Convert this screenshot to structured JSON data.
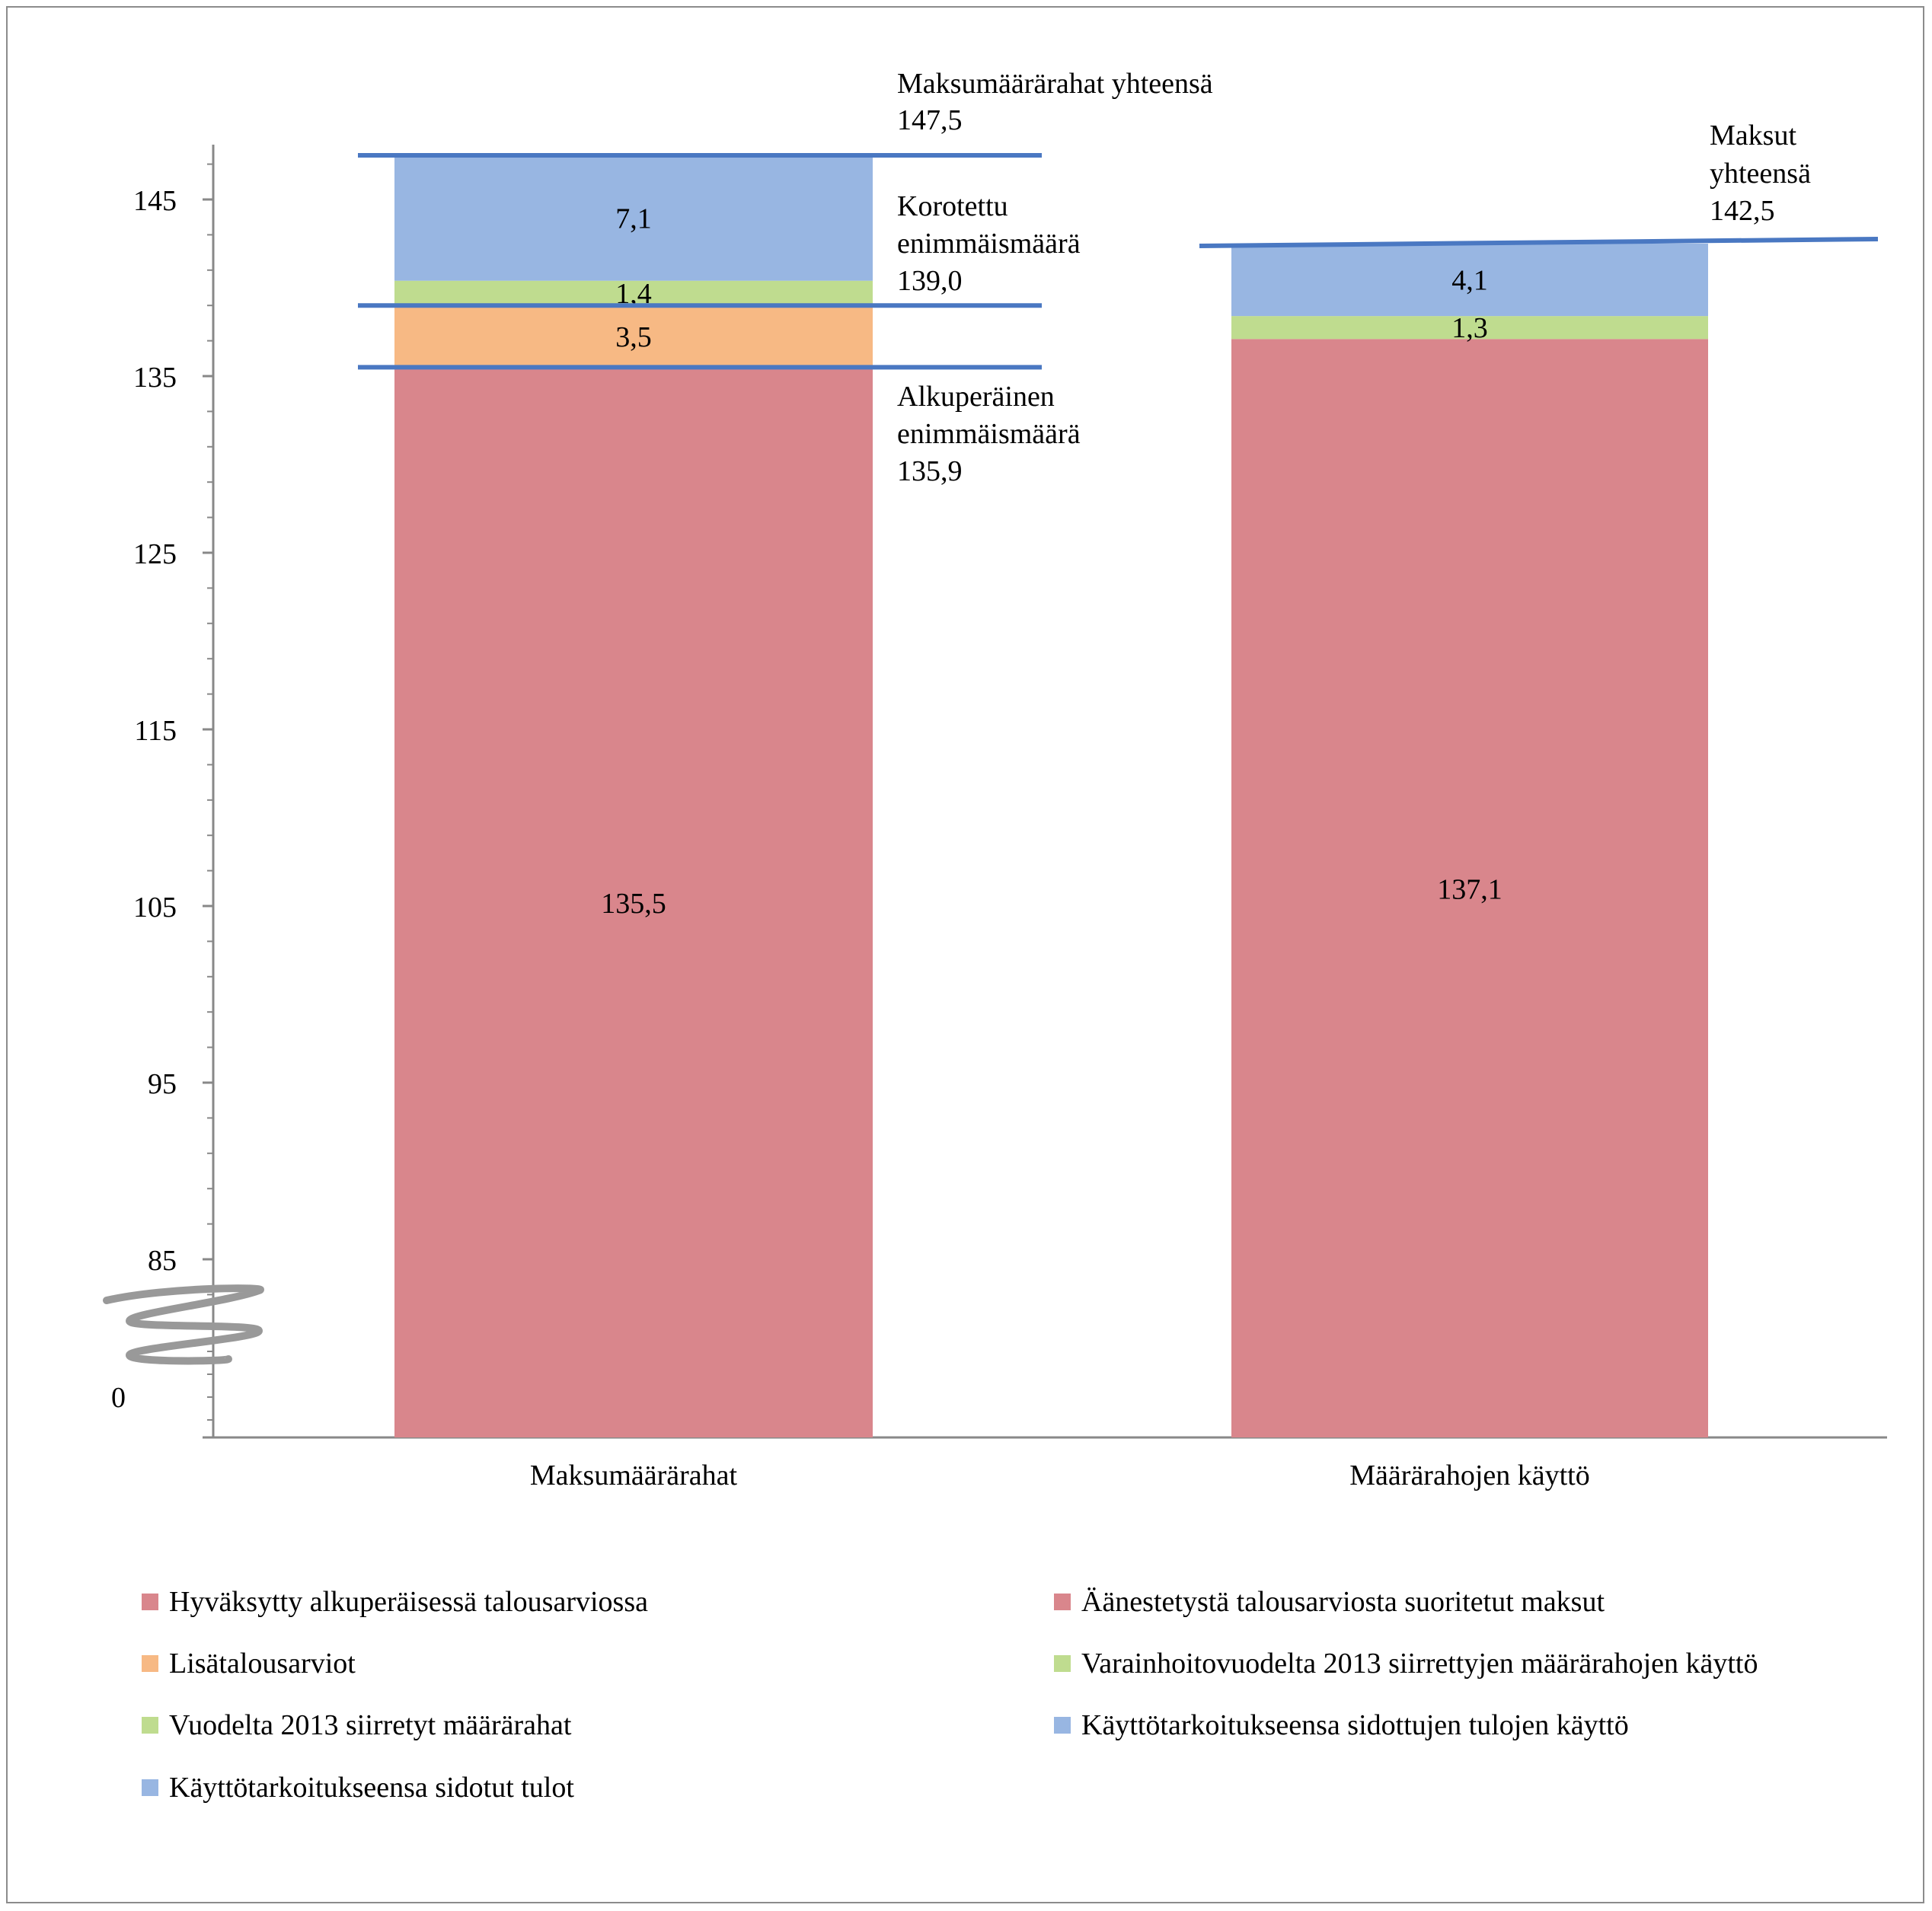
{
  "chart_data": {
    "type": "bar",
    "stacked": true,
    "categories": [
      "Maksumäärärahat",
      "Määrärahojen käyttö"
    ],
    "y_axis": {
      "ticks": [
        "145",
        "135",
        "125",
        "115",
        "105",
        "95",
        "85",
        "0"
      ],
      "tick_values": [
        145,
        135,
        125,
        115,
        105,
        95,
        85,
        0
      ],
      "broken_axis": true,
      "visible_range": [
        83,
        147.5
      ]
    },
    "bars": [
      {
        "category": "Maksumäärärahat",
        "segments": [
          {
            "name": "Hyväksytty alkuperäisessä talousarviossa",
            "value": 135.5,
            "label": "135,5",
            "color": "#d9868c"
          },
          {
            "name": "Lisätalousarviot",
            "value": 3.5,
            "label": "3,5",
            "color": "#f7b984"
          },
          {
            "name": "Vuodelta 2013 siirretyt määrärahat",
            "value": 1.4,
            "label": "1,4",
            "color": "#bfdc8f"
          },
          {
            "name": "Käyttötarkoitukseensa sidotut tulot",
            "value": 7.1,
            "label": "7,1",
            "color": "#98b6e2"
          }
        ]
      },
      {
        "category": "Määrärahojen käyttö",
        "segments": [
          {
            "name": "Äänestetystä talousarviosta suoritetut maksut",
            "value": 137.1,
            "label": "137,1",
            "color": "#d9868c"
          },
          {
            "name": "Varainhoitovuodelta 2013 siirrettyjen määrärahojen käyttö",
            "value": 1.3,
            "label": "1,3",
            "color": "#bfdc8f"
          },
          {
            "name": "Käyttötarkoitukseensa sidottujen tulojen käyttö",
            "value": 4.1,
            "label": "4,1",
            "color": "#98b6e2"
          }
        ]
      }
    ],
    "reference_lines": [
      {
        "id": "total-appropriations",
        "value": 147.5,
        "bar": 0,
        "text": [
          "Maksumäärärahat  yhteensä",
          "147,5"
        ]
      },
      {
        "id": "increased-ceiling",
        "value": 139.0,
        "bar": 0,
        "text": [
          "Korotettu",
          "enimmäismäärä",
          "139,0"
        ]
      },
      {
        "id": "original-ceiling",
        "value": 135.9,
        "bar": 0,
        "text": [
          "Alkuperäinen",
          "enimmäismäärä",
          "135,9"
        ]
      },
      {
        "id": "total-payments",
        "value": 142.5,
        "bar": 1,
        "text": [
          "Maksut",
          "yhteensä",
          "142,5"
        ]
      }
    ],
    "legend": [
      {
        "label": "Hyväksytty alkuperäisessä talousarviossa",
        "color": "#d9868c"
      },
      {
        "label": "Äänestetystä talousarviosta suoritetut maksut",
        "color": "#d9868c"
      },
      {
        "label": "Lisätalousarviot",
        "color": "#f7b984"
      },
      {
        "label": "Varainhoitovuodelta 2013 siirrettyjen määrärahojen käyttö",
        "color": "#bfdc8f"
      },
      {
        "label": "Vuodelta 2013 siirretyt määrärahat",
        "color": "#bfdc8f"
      },
      {
        "label": "Käyttötarkoitukseensa sidottujen tulojen käyttö",
        "color": "#98b6e2"
      },
      {
        "label": "Käyttötarkoitukseensa sidotut tulot",
        "color": "#98b6e2"
      }
    ],
    "legend_position": "bottom",
    "line_color": "#4a78c2",
    "axis_color": "#888888"
  }
}
